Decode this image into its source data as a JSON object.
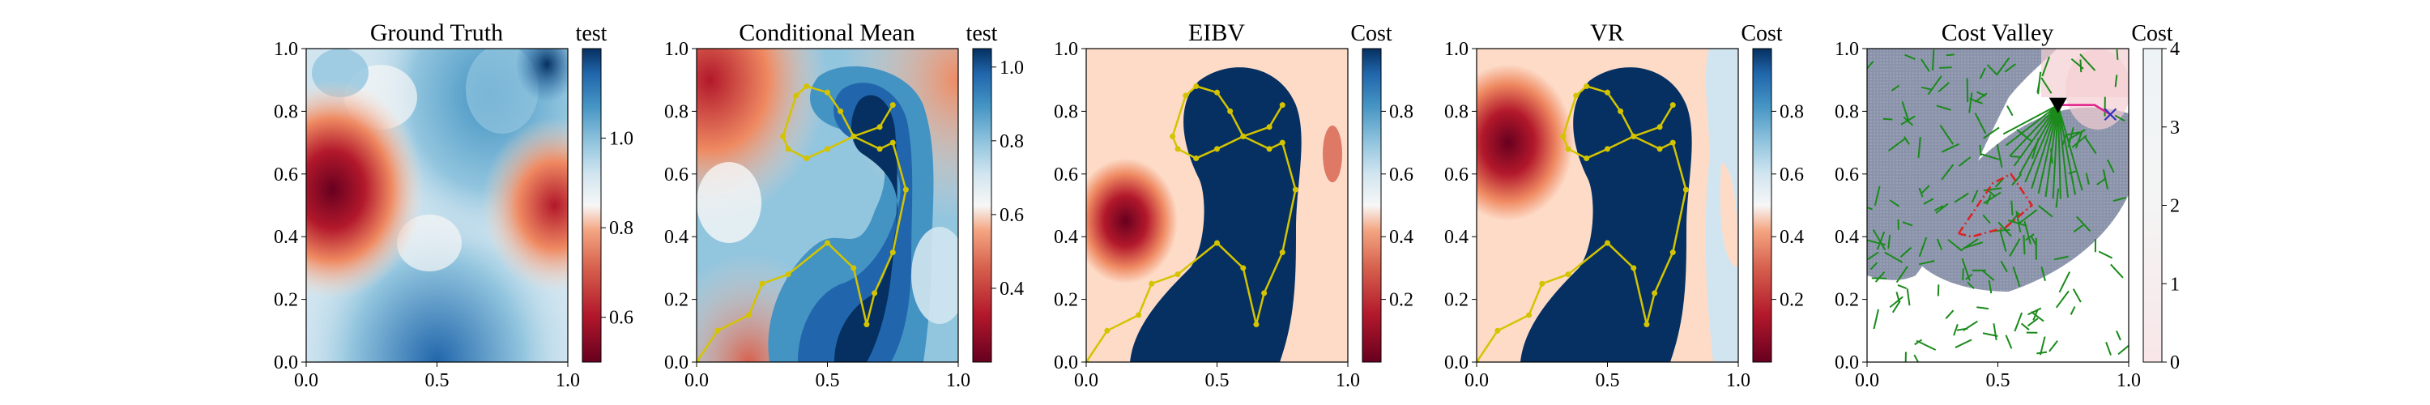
{
  "chart_data": [
    {
      "type": "heatmap",
      "title": "Ground Truth",
      "colorbar_title": "test",
      "xlim": [
        0,
        1
      ],
      "ylim": [
        0,
        1
      ],
      "xticks": [
        "0.0",
        "0.5",
        "1.0"
      ],
      "yticks": [
        "0.0",
        "0.2",
        "0.4",
        "0.6",
        "0.8",
        "1.0"
      ],
      "colormap": "RdBu",
      "colorbar_range": [
        0.5,
        1.2
      ],
      "colorbar_ticks": [
        "0.6",
        "0.8",
        "1.0"
      ]
    },
    {
      "type": "heatmap",
      "title": "Conditional Mean",
      "colorbar_title": "test",
      "xlim": [
        0,
        1
      ],
      "ylim": [
        0,
        1
      ],
      "xticks": [
        "0.0",
        "0.5",
        "1.0"
      ],
      "yticks": [
        "0.0",
        "0.2",
        "0.4",
        "0.6",
        "0.8",
        "1.0"
      ],
      "colormap": "RdBu",
      "colorbar_range": [
        0.2,
        1.05
      ],
      "colorbar_ticks": [
        "0.4",
        "0.6",
        "0.8",
        "1.0"
      ],
      "path": {
        "color": "#d4c400",
        "x": [
          0.0,
          0.08,
          0.2,
          0.25,
          0.35,
          0.5,
          0.6,
          0.65,
          0.68,
          0.75,
          0.8,
          0.75,
          0.7,
          0.6,
          0.5,
          0.42,
          0.35,
          0.33,
          0.38,
          0.42,
          0.5,
          0.55,
          0.6,
          0.7,
          0.75
        ],
        "y": [
          0.0,
          0.1,
          0.15,
          0.25,
          0.28,
          0.38,
          0.3,
          0.12,
          0.22,
          0.35,
          0.55,
          0.7,
          0.68,
          0.72,
          0.68,
          0.65,
          0.68,
          0.72,
          0.85,
          0.88,
          0.86,
          0.8,
          0.72,
          0.75,
          0.82
        ]
      }
    },
    {
      "type": "heatmap",
      "title": "EIBV",
      "colorbar_title": "Cost",
      "xlim": [
        0,
        1
      ],
      "ylim": [
        0,
        1
      ],
      "xticks": [
        "0.0",
        "0.5",
        "1.0"
      ],
      "yticks": [
        "0.0",
        "0.2",
        "0.4",
        "0.6",
        "0.8",
        "1.0"
      ],
      "colormap": "RdBu",
      "colorbar_range": [
        0.0,
        1.0
      ],
      "colorbar_ticks": [
        "0.2",
        "0.4",
        "0.6",
        "0.8"
      ],
      "path": {
        "color": "#d4c400",
        "x": [
          0.0,
          0.08,
          0.2,
          0.25,
          0.35,
          0.5,
          0.6,
          0.65,
          0.68,
          0.75,
          0.8,
          0.75,
          0.7,
          0.6,
          0.5,
          0.42,
          0.35,
          0.33,
          0.38,
          0.42,
          0.5,
          0.55,
          0.6,
          0.7,
          0.75
        ],
        "y": [
          0.0,
          0.1,
          0.15,
          0.25,
          0.28,
          0.38,
          0.3,
          0.12,
          0.22,
          0.35,
          0.55,
          0.7,
          0.68,
          0.72,
          0.68,
          0.65,
          0.68,
          0.72,
          0.85,
          0.88,
          0.86,
          0.8,
          0.72,
          0.75,
          0.82
        ]
      }
    },
    {
      "type": "heatmap",
      "title": "VR",
      "colorbar_title": "Cost",
      "xlim": [
        0,
        1
      ],
      "ylim": [
        0,
        1
      ],
      "xticks": [
        "0.0",
        "0.5",
        "1.0"
      ],
      "yticks": [
        "0.0",
        "0.2",
        "0.4",
        "0.6",
        "0.8",
        "1.0"
      ],
      "colormap": "RdBu",
      "colorbar_range": [
        0.0,
        1.0
      ],
      "colorbar_ticks": [
        "0.2",
        "0.4",
        "0.6",
        "0.8"
      ],
      "path": {
        "color": "#d4c400",
        "x": [
          0.0,
          0.08,
          0.2,
          0.25,
          0.35,
          0.5,
          0.6,
          0.65,
          0.68,
          0.75,
          0.8,
          0.75,
          0.7,
          0.6,
          0.5,
          0.42,
          0.35,
          0.33,
          0.38,
          0.42,
          0.5,
          0.55,
          0.6,
          0.7,
          0.75
        ],
        "y": [
          0.0,
          0.1,
          0.15,
          0.25,
          0.28,
          0.38,
          0.3,
          0.12,
          0.22,
          0.35,
          0.55,
          0.7,
          0.68,
          0.72,
          0.68,
          0.65,
          0.68,
          0.72,
          0.85,
          0.88,
          0.86,
          0.8,
          0.72,
          0.75,
          0.82
        ]
      }
    },
    {
      "type": "heatmap",
      "title": "Cost Valley",
      "colorbar_title": "Cost",
      "xlim": [
        0,
        1
      ],
      "ylim": [
        0,
        1
      ],
      "xticks": [
        "0.0",
        "0.5",
        "1.0"
      ],
      "yticks": [
        "0.0",
        "0.2",
        "0.4",
        "0.6",
        "0.8",
        "1.0"
      ],
      "colormap": "white-to-pink",
      "colorbar_range": [
        0,
        4
      ],
      "colorbar_ticks": [
        "0",
        "1",
        "2",
        "3",
        "4"
      ],
      "current_location": {
        "x": 0.73,
        "y": 0.82,
        "marker": "down-triangle",
        "color": "#000000"
      },
      "next_waypoint": {
        "x": 0.93,
        "y": 0.79,
        "marker": "x",
        "color": "#3030c0"
      },
      "obstacle_polygon": {
        "color": "#e02020",
        "style": "dash-dot",
        "x": [
          0.35,
          0.48,
          0.55,
          0.63,
          0.53,
          0.4,
          0.35
        ],
        "y": [
          0.41,
          0.57,
          0.6,
          0.5,
          0.43,
          0.4,
          0.41
        ]
      },
      "tree_color": "#1a8a1a",
      "valley_color": "#8a93aa"
    }
  ]
}
